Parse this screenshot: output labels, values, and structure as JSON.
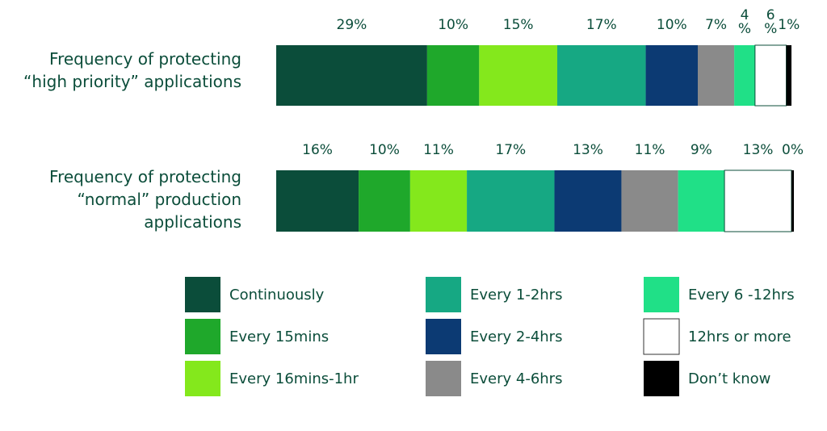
{
  "chart_data": {
    "type": "stacked-bar-horizontal",
    "series": [
      {
        "name": "Continuously",
        "color": "#0b4d3a"
      },
      {
        "name": "Every 15mins",
        "color": "#1fa82b"
      },
      {
        "name": "Every 16mins-1hr",
        "color": "#84e81c"
      },
      {
        "name": "Every 1-2hrs",
        "color": "#16a883"
      },
      {
        "name": "Every 2-4hrs",
        "color": "#0c3a73"
      },
      {
        "name": "Every 4-6hrs",
        "color": "#8a8a8a"
      },
      {
        "name": "Every 6 -12hrs",
        "color": "#20e087"
      },
      {
        "name": "12hrs or more",
        "color": "#ffffff"
      },
      {
        "name": "Don’t know",
        "color": "#000000"
      }
    ],
    "rows": [
      {
        "label": [
          "Frequency of protecting",
          "“high priority” applications"
        ],
        "values": [
          29,
          10,
          15,
          17,
          10,
          7,
          4,
          6,
          1
        ],
        "value_labels": [
          "29%",
          "10%",
          "15%",
          "17%",
          "10%",
          "7%",
          "4\n%",
          "6\n%",
          "1%"
        ]
      },
      {
        "label": [
          "Frequency of protecting",
          "“normal” production",
          "applications"
        ],
        "values": [
          16,
          10,
          11,
          17,
          13,
          11,
          9,
          13,
          0
        ],
        "value_labels": [
          "16%",
          "10%",
          "11%",
          "17%",
          "13%",
          "11%",
          "9%",
          "13%",
          "0%"
        ]
      }
    ],
    "legend": {
      "position": "bottom",
      "columns": 3
    }
  }
}
